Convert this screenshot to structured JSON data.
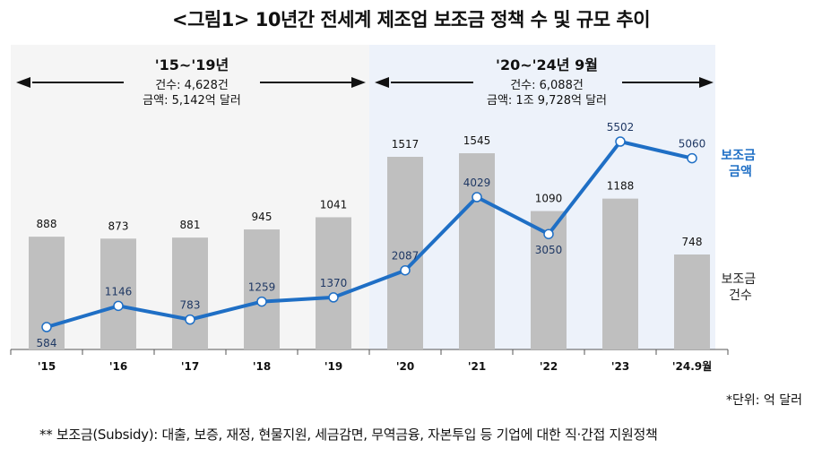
{
  "chart_data": {
    "type": "bar+line",
    "title": "<그림1> 10년간 전세계 제조업 보조금 정책 수 및 규모 추이",
    "categories": [
      "'15",
      "'16",
      "'17",
      "'18",
      "'19",
      "'20",
      "'21",
      "'22",
      "'23",
      "'24.9월"
    ],
    "series": [
      {
        "name": "보조금\n건수",
        "type": "bar",
        "color": "#bfbfbf",
        "values": [
          888,
          873,
          881,
          945,
          1041,
          1517,
          1545,
          1090,
          1188,
          748
        ]
      },
      {
        "name": "보조금\n금액",
        "type": "line",
        "color": "#1f6fc5",
        "values": [
          584,
          1146,
          783,
          1259,
          1370,
          2087,
          4029,
          3050,
          5502,
          5060
        ]
      }
    ],
    "periods": [
      {
        "label": "'15~'19년",
        "count_text": "건수: 4,628건",
        "amount_text": "금액: 5,142억 달러"
      },
      {
        "label": "'20~'24년 9월",
        "count_text": "건수: 6,088건",
        "amount_text": "금액: 1조 9,728억 달러"
      }
    ],
    "unit_note": "*단위: 억 달러",
    "footnote": "** 보조금(Subsidy): 대출, 보증, 재정, 현물지원, 세금감면, 무역금융, 자본투입 등 기업에 대한 직·간접 지원정책",
    "colors": {
      "bar": "#bfbfbf",
      "line": "#1f6fc5",
      "period1_bg": "#f5f5f5",
      "period2_bg": "#edf2fa",
      "value_label": "#1f3864"
    }
  }
}
